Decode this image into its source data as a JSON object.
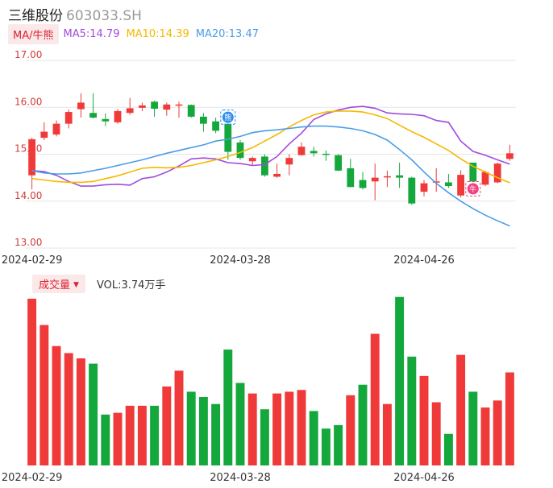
{
  "header": {
    "name": "三维股份",
    "code": "603033.SH"
  },
  "indicators": {
    "mode_label": "MA/牛熊",
    "ma5": {
      "label": "MA5:14.79",
      "color": "#a24bdc"
    },
    "ma10": {
      "label": "MA10:14.39",
      "color": "#f5b800"
    },
    "ma20": {
      "label": "MA20:13.47",
      "color": "#4a9de8"
    }
  },
  "volume_header": {
    "button": "成交量",
    "label": "VOL:3.74万手"
  },
  "colors": {
    "up": "#f03a3a",
    "down": "#14a83c",
    "axis_text": "#d23c3c",
    "grid": "#e6e6e6"
  },
  "chart_data": [
    {
      "type": "candlestick",
      "ylim": [
        13.0,
        17.0
      ],
      "y_ticks": [
        "17.00",
        "16.00",
        "15.00",
        "14.00",
        "13.00"
      ],
      "x_ticks": [
        {
          "index": 0,
          "label": "2024-02-29"
        },
        {
          "index": 17,
          "label": "2024-03-28"
        },
        {
          "index": 32,
          "label": "2024-04-26"
        }
      ],
      "candles": [
        {
          "o": 14.55,
          "c": 15.32,
          "h": 15.35,
          "l": 14.25
        },
        {
          "o": 15.35,
          "c": 15.48,
          "h": 15.68,
          "l": 15.3
        },
        {
          "o": 15.42,
          "c": 15.65,
          "h": 15.72,
          "l": 15.38
        },
        {
          "o": 15.65,
          "c": 15.9,
          "h": 15.95,
          "l": 15.55
        },
        {
          "o": 15.96,
          "c": 16.1,
          "h": 16.3,
          "l": 15.78
        },
        {
          "o": 15.88,
          "c": 15.78,
          "h": 16.3,
          "l": 15.76
        },
        {
          "o": 15.75,
          "c": 15.7,
          "h": 15.87,
          "l": 15.6
        },
        {
          "o": 15.68,
          "c": 15.92,
          "h": 15.96,
          "l": 15.65
        },
        {
          "o": 15.88,
          "c": 15.98,
          "h": 16.2,
          "l": 15.84
        },
        {
          "o": 15.99,
          "c": 16.04,
          "h": 16.1,
          "l": 15.92
        },
        {
          "o": 16.12,
          "c": 15.97,
          "h": 16.14,
          "l": 15.8
        },
        {
          "o": 15.95,
          "c": 16.06,
          "h": 16.1,
          "l": 15.82
        },
        {
          "o": 16.04,
          "c": 16.06,
          "h": 16.12,
          "l": 15.78
        },
        {
          "o": 16.05,
          "c": 15.8,
          "h": 16.06,
          "l": 15.78
        },
        {
          "o": 15.8,
          "c": 15.65,
          "h": 15.88,
          "l": 15.48
        },
        {
          "o": 15.7,
          "c": 15.5,
          "h": 15.78,
          "l": 15.45
        },
        {
          "o": 15.65,
          "c": 15.05,
          "h": 15.65,
          "l": 14.88
        },
        {
          "o": 15.25,
          "c": 14.92,
          "h": 15.3,
          "l": 14.88
        },
        {
          "o": 14.85,
          "c": 14.92,
          "h": 14.95,
          "l": 14.75
        },
        {
          "o": 14.95,
          "c": 14.55,
          "h": 15.0,
          "l": 14.52
        },
        {
          "o": 14.52,
          "c": 14.58,
          "h": 14.8,
          "l": 14.5
        },
        {
          "o": 14.78,
          "c": 14.92,
          "h": 15.0,
          "l": 14.55
        },
        {
          "o": 14.98,
          "c": 15.16,
          "h": 15.25,
          "l": 14.97
        },
        {
          "o": 15.07,
          "c": 15.02,
          "h": 15.16,
          "l": 14.95
        },
        {
          "o": 15.01,
          "c": 15.0,
          "h": 15.08,
          "l": 14.86
        },
        {
          "o": 14.98,
          "c": 14.65,
          "h": 15.0,
          "l": 14.64
        },
        {
          "o": 14.7,
          "c": 14.3,
          "h": 14.9,
          "l": 14.3
        },
        {
          "o": 14.45,
          "c": 14.28,
          "h": 14.62,
          "l": 14.25
        },
        {
          "o": 14.42,
          "c": 14.5,
          "h": 14.8,
          "l": 14.02
        },
        {
          "o": 14.52,
          "c": 14.53,
          "h": 14.65,
          "l": 14.3
        },
        {
          "o": 14.55,
          "c": 14.5,
          "h": 14.82,
          "l": 14.28
        },
        {
          "o": 14.5,
          "c": 13.95,
          "h": 14.52,
          "l": 13.92
        },
        {
          "o": 14.2,
          "c": 14.38,
          "h": 14.45,
          "l": 14.1
        },
        {
          "o": 14.4,
          "c": 14.42,
          "h": 14.7,
          "l": 14.2
        },
        {
          "o": 14.4,
          "c": 14.32,
          "h": 14.58,
          "l": 14.28
        },
        {
          "o": 14.12,
          "c": 14.56,
          "h": 14.66,
          "l": 14.08
        },
        {
          "o": 14.82,
          "c": 14.42,
          "h": 14.82,
          "l": 14.4
        },
        {
          "o": 14.35,
          "c": 14.62,
          "h": 14.65,
          "l": 14.32
        },
        {
          "o": 14.4,
          "c": 14.8,
          "h": 14.82,
          "l": 14.38
        },
        {
          "o": 14.9,
          "c": 15.02,
          "h": 15.2,
          "l": 14.86
        }
      ],
      "series": [
        {
          "name": "MA5",
          "values": [
            14.65,
            14.63,
            14.55,
            14.42,
            14.32,
            14.32,
            14.35,
            14.36,
            14.34,
            14.48,
            14.52,
            14.62,
            14.75,
            14.9,
            14.92,
            14.9,
            14.82,
            14.8,
            14.76,
            14.78,
            14.95,
            15.22,
            15.45,
            15.74,
            15.86,
            15.94,
            16.0,
            16.02,
            15.98,
            15.88,
            15.86,
            15.85,
            15.82,
            15.72,
            15.68,
            15.28,
            15.06,
            14.98,
            14.88,
            14.79
          ]
        },
        {
          "name": "MA10",
          "values": [
            14.48,
            14.45,
            14.42,
            14.4,
            14.4,
            14.42,
            14.48,
            14.54,
            14.62,
            14.7,
            14.72,
            14.71,
            14.72,
            14.76,
            14.82,
            14.88,
            14.95,
            15.04,
            15.14,
            15.28,
            15.42,
            15.58,
            15.72,
            15.84,
            15.9,
            15.92,
            15.92,
            15.9,
            15.84,
            15.76,
            15.62,
            15.48,
            15.36,
            15.22,
            15.08,
            14.9,
            14.74,
            14.62,
            14.5,
            14.39
          ]
        },
        {
          "name": "MA20",
          "values": [
            14.65,
            14.6,
            14.58,
            14.58,
            14.6,
            14.65,
            14.7,
            14.76,
            14.82,
            14.88,
            14.95,
            15.02,
            15.08,
            15.14,
            15.2,
            15.28,
            15.32,
            15.38,
            15.46,
            15.5,
            15.52,
            15.55,
            15.58,
            15.6,
            15.6,
            15.58,
            15.55,
            15.5,
            15.42,
            15.3,
            15.1,
            14.88,
            14.62,
            14.38,
            14.18,
            14.0,
            13.84,
            13.7,
            13.58,
            13.47
          ]
        }
      ],
      "markers": [
        {
          "index": 16,
          "glyph": "熊",
          "color": "#2f8df0"
        },
        {
          "index": 36,
          "glyph": "牛",
          "color": "#f04080"
        }
      ]
    },
    {
      "type": "bar",
      "ylim": [
        0,
        100
      ],
      "values": [
        95,
        80,
        68,
        64,
        61,
        58,
        29,
        30,
        34,
        34,
        34,
        45,
        54,
        42,
        39,
        35,
        66,
        47,
        41,
        32,
        41,
        42,
        43,
        31,
        21,
        23,
        40,
        46,
        75,
        35,
        96,
        62,
        51,
        36,
        18,
        63,
        42,
        33,
        37,
        53
      ],
      "directions": [
        "up",
        "up",
        "up",
        "up",
        "up",
        "down",
        "down",
        "up",
        "up",
        "up",
        "down",
        "up",
        "up",
        "down",
        "down",
        "down",
        "down",
        "down",
        "up",
        "down",
        "up",
        "up",
        "up",
        "down",
        "down",
        "down",
        "up",
        "down",
        "up",
        "up",
        "down",
        "down",
        "up",
        "up",
        "down",
        "up",
        "down",
        "up",
        "up",
        "up"
      ]
    }
  ]
}
